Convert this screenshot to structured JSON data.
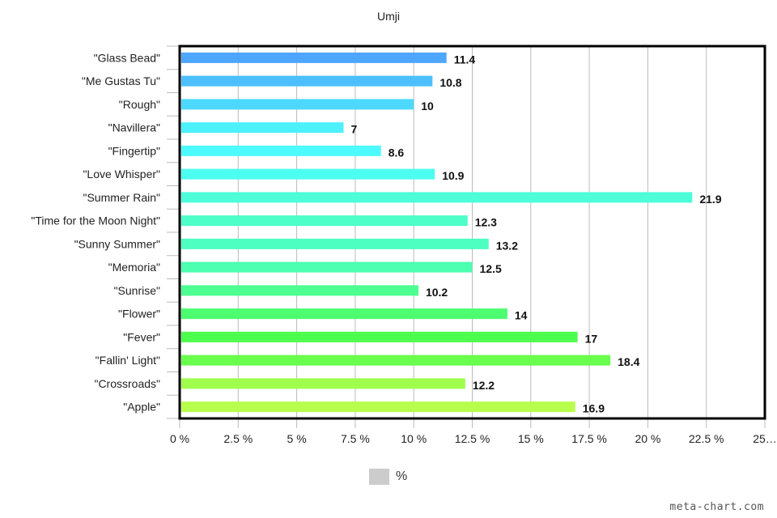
{
  "chart_data": {
    "type": "bar",
    "orientation": "horizontal",
    "title": "Umji",
    "categories": [
      "\"Glass Bead\"",
      "\"Me Gustas Tu\"",
      "\"Rough\"",
      "\"Navillera\"",
      "\"Fingertip\"",
      "\"Love Whisper\"",
      "\"Summer Rain\"",
      "\"Time for the Moon Night\"",
      "\"Sunny Summer\"",
      "\"Memoria\"",
      "\"Sunrise\"",
      "\"Flower\"",
      "\"Fever\"",
      "\"Fallin' Light\"",
      "\"Crossroads\"",
      "\"Apple\""
    ],
    "series": [
      {
        "name": "%",
        "values": [
          11.4,
          10.8,
          10,
          7,
          8.6,
          10.9,
          21.9,
          12.3,
          13.2,
          12.5,
          10.2,
          14,
          17,
          18.4,
          12.2,
          16.9
        ]
      }
    ],
    "data_labels": [
      "11.4",
      "10.8",
      "10",
      "7",
      "8.6",
      "10.9",
      "21.9",
      "12.3",
      "13.2",
      "12.5",
      "10.2",
      "14",
      "17",
      "18.4",
      "12.2",
      "16.9"
    ],
    "bar_colors": [
      "#4da6ff",
      "#4dbfff",
      "#4dd9ff",
      "#4df0ff",
      "#4dfaff",
      "#4dfff0",
      "#4dffd9",
      "#4dffc8",
      "#4dffc0",
      "#4dffb0",
      "#4dff90",
      "#4dff70",
      "#4dff4d",
      "#6bff4d",
      "#a0ff4d",
      "#b8ff4d"
    ],
    "xlim": [
      0,
      25
    ],
    "x_ticks": [
      "0 %",
      "2.5 %",
      "5 %",
      "7.5 %",
      "10 %",
      "12.5 %",
      "15 %",
      "17.5 %",
      "20 %",
      "22.5 %",
      "25…"
    ],
    "grid": true,
    "legend_position": "bottom",
    "legend_color": "#cccccc"
  },
  "watermark": "meta-chart.com"
}
